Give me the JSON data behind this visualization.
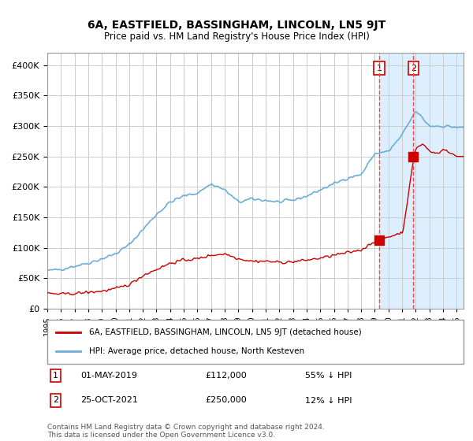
{
  "title": "6A, EASTFIELD, BASSINGHAM, LINCOLN, LN5 9JT",
  "subtitle": "Price paid vs. HM Land Registry's House Price Index (HPI)",
  "hpi_label": "HPI: Average price, detached house, North Kesteven",
  "price_label": "6A, EASTFIELD, BASSINGHAM, LINCOLN, LN5 9JT (detached house)",
  "footer": "Contains HM Land Registry data © Crown copyright and database right 2024.\nThis data is licensed under the Open Government Licence v3.0.",
  "transaction1": {
    "date": "01-MAY-2019",
    "price": 112000,
    "hpi_rel": "55% ↓ HPI"
  },
  "transaction2": {
    "date": "25-OCT-2021",
    "price": 250000,
    "hpi_rel": "12% ↓ HPI"
  },
  "sale1_year": 2019.33,
  "sale2_year": 2021.83,
  "hpi_color": "#6baed6",
  "price_color": "#cc0000",
  "highlight_color": "#ddeeff",
  "dashed_color": "#ff4444",
  "marker_color": "#cc0000",
  "grid_color": "#cccccc",
  "background_color": "#ffffff",
  "ylim": [
    0,
    420000
  ],
  "xlim_start": 1995.0,
  "xlim_end": 2025.5
}
